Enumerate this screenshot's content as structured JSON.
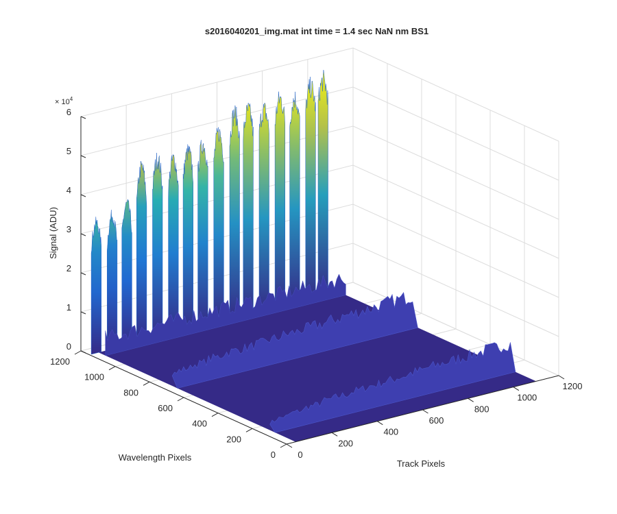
{
  "chart_data": {
    "type": "surface",
    "title": "s2016040201_img.mat int time = 1.4 sec  NaN nm BS1",
    "xlabel": "Track Pixels",
    "ylabel": "Wavelength Pixels",
    "zlabel": "Signal (ADU)",
    "z_exponent": "× 10^4",
    "z_exponent_base": "× 10",
    "z_exponent_power": "4",
    "xlim": [
      0,
      1200
    ],
    "ylim": [
      0,
      1200
    ],
    "zlim": [
      0,
      60000
    ],
    "x_ticks": [
      "0",
      "200",
      "400",
      "600",
      "800",
      "1000",
      "1200"
    ],
    "y_ticks": [
      "0",
      "200",
      "400",
      "600",
      "800",
      "1000",
      "1200"
    ],
    "z_ticks": [
      "0",
      "1",
      "2",
      "3",
      "4",
      "5",
      "6"
    ],
    "grid": true,
    "colormap": "parula",
    "colors": {
      "low": "#352a87",
      "mid_low": "#1f6fd8",
      "mid": "#29b3b0",
      "high": "#c8c33a",
      "peak": "#f9fb0e"
    },
    "tracks_x": [
      30,
      100,
      165,
      230,
      300,
      370,
      435,
      500,
      570,
      640,
      700,
      770,
      840,
      905,
      975,
      1030
    ],
    "track_peak_values": [
      35000,
      36000,
      38000,
      47000,
      48000,
      47000,
      48000,
      49000,
      51000,
      55000,
      55000,
      54000,
      56000,
      55000,
      57000,
      58000
    ],
    "track_base_values": [
      22000,
      20000,
      23000,
      28000,
      32000,
      31000,
      34000,
      34000,
      36000,
      40000,
      42000,
      42000,
      43000,
      42000,
      45000,
      46000
    ],
    "secondary_band_values": [
      2000,
      2500,
      3000,
      3500,
      4000,
      4200,
      4500,
      4800,
      5000,
      5200,
      5500,
      5800,
      6000,
      6200,
      6400,
      6600
    ],
    "far_band_values": [
      3000,
      3500,
      4000,
      4500,
      5000,
      5000,
      5200,
      5500,
      5800,
      6000,
      6200,
      6500,
      6800,
      7000,
      7200,
      7500
    ]
  }
}
